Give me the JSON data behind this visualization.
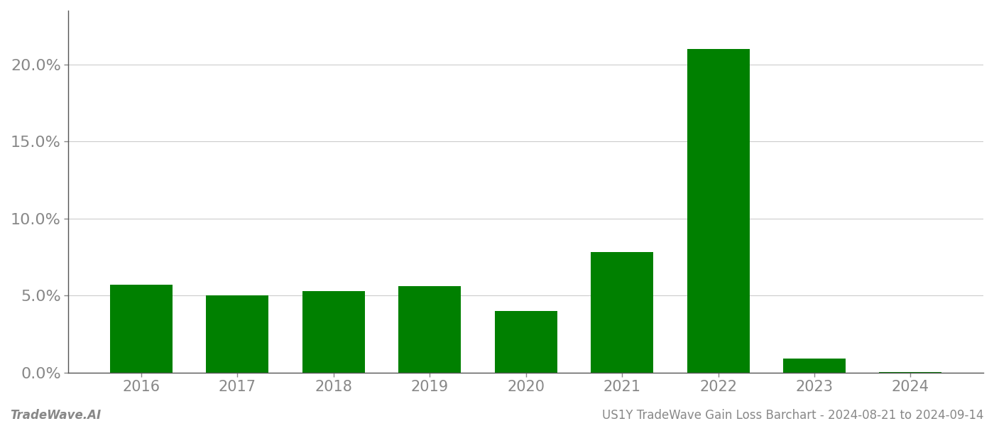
{
  "years": [
    2016,
    2017,
    2018,
    2019,
    2020,
    2021,
    2022,
    2023,
    2024
  ],
  "values": [
    0.057,
    0.05,
    0.053,
    0.056,
    0.04,
    0.078,
    0.21,
    0.009,
    0.0002
  ],
  "bar_color": "#008000",
  "background_color": "#ffffff",
  "grid_color": "#cccccc",
  "axis_color": "#555555",
  "tick_color": "#888888",
  "footer_left": "TradeWave.AI",
  "footer_right": "US1Y TradeWave Gain Loss Barchart - 2024-08-21 to 2024-09-14",
  "footer_fontsize": 12,
  "ylim": [
    0,
    0.235
  ],
  "yticks": [
    0.0,
    0.05,
    0.1,
    0.15,
    0.2
  ],
  "bar_width": 0.65,
  "tick_fontsize": 16,
  "xtick_fontsize": 15
}
